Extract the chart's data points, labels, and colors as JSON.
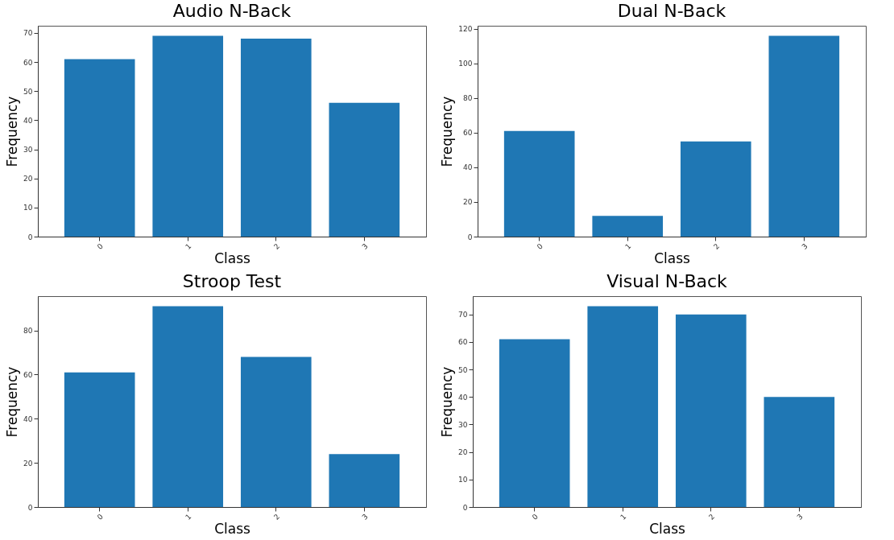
{
  "chart_data": [
    {
      "type": "bar",
      "title": "Audio N-Back",
      "xlabel": "Class",
      "ylabel": "Frequency",
      "categories": [
        "0",
        "1",
        "2",
        "3"
      ],
      "values": [
        61,
        69,
        68,
        46
      ],
      "color": "#1f77b4",
      "ylim": [
        0,
        72.45
      ],
      "yticks": [
        0,
        10,
        20,
        30,
        40,
        50,
        60,
        70
      ],
      "grid": false
    },
    {
      "type": "bar",
      "title": "Dual N-Back",
      "xlabel": "Class",
      "ylabel": "Frequency",
      "categories": [
        "0",
        "1",
        "2",
        "3"
      ],
      "values": [
        61,
        12,
        55,
        116
      ],
      "color": "#1f77b4",
      "ylim": [
        0,
        121.8
      ],
      "yticks": [
        0,
        20,
        40,
        60,
        80,
        100,
        120
      ],
      "grid": false
    },
    {
      "type": "bar",
      "title": "Stroop Test",
      "xlabel": "Class",
      "ylabel": "Frequency",
      "categories": [
        "0",
        "1",
        "2",
        "3"
      ],
      "values": [
        61,
        91,
        68,
        24
      ],
      "color": "#1f77b4",
      "ylim": [
        0,
        95.55
      ],
      "yticks": [
        0,
        20,
        40,
        60,
        80
      ],
      "grid": false
    },
    {
      "type": "bar",
      "title": "Visual N-Back",
      "xlabel": "Class",
      "ylabel": "Frequency",
      "categories": [
        "0",
        "1",
        "2",
        "3"
      ],
      "values": [
        61,
        73,
        70,
        40
      ],
      "color": "#1f77b4",
      "ylim": [
        0,
        76.65
      ],
      "yticks": [
        0,
        10,
        20,
        30,
        40,
        50,
        60,
        70
      ],
      "grid": false
    }
  ]
}
